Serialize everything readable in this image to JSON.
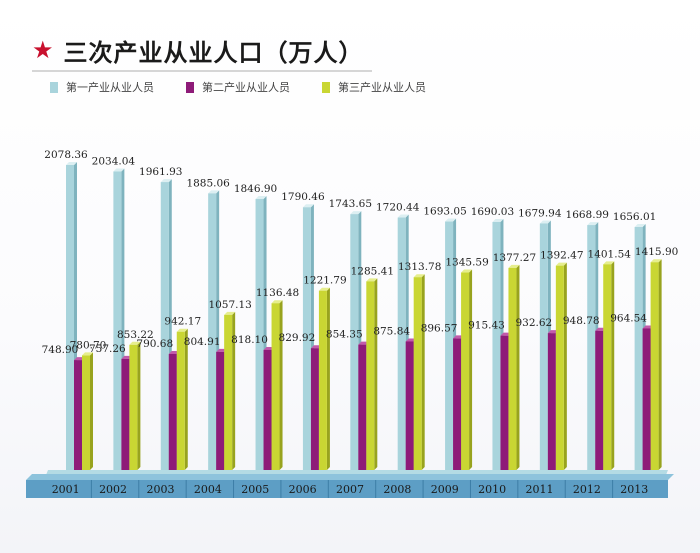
{
  "title": "三次产业从业人口（万人）",
  "star_icon": "★",
  "legend": [
    {
      "label": "第一产业从业人员",
      "color": "#a9d4dc"
    },
    {
      "label": "第二产业从业人员",
      "color": "#8e1b78"
    },
    {
      "label": "第三产业从业人员",
      "color": "#c9d633"
    }
  ],
  "chart_data": {
    "type": "bar",
    "categories": [
      "2001",
      "2002",
      "2003",
      "2004",
      "2005",
      "2006",
      "2007",
      "2008",
      "2009",
      "2010",
      "2011",
      "2012",
      "2013"
    ],
    "series": [
      {
        "name": "第一产业从业人员",
        "values": [
          2078.36,
          2034.04,
          1961.93,
          1885.06,
          1846.9,
          1790.46,
          1743.65,
          1720.44,
          1693.05,
          1690.03,
          1679.94,
          1668.99,
          1656.01
        ]
      },
      {
        "name": "第二产业从业人员",
        "values": [
          748.9,
          757.26,
          790.68,
          804.91,
          818.1,
          829.92,
          854.35,
          875.84,
          896.57,
          915.43,
          932.62,
          948.78,
          964.54
        ]
      },
      {
        "name": "第三产业从业人员",
        "values": [
          780.7,
          853.22,
          942.17,
          1057.13,
          1136.48,
          1221.79,
          1285.41,
          1313.78,
          1345.59,
          1377.27,
          1392.47,
          1401.54,
          1415.9
        ]
      }
    ],
    "ylim": [
      0,
      2200
    ],
    "grid": false,
    "legend_position": "top-left"
  }
}
